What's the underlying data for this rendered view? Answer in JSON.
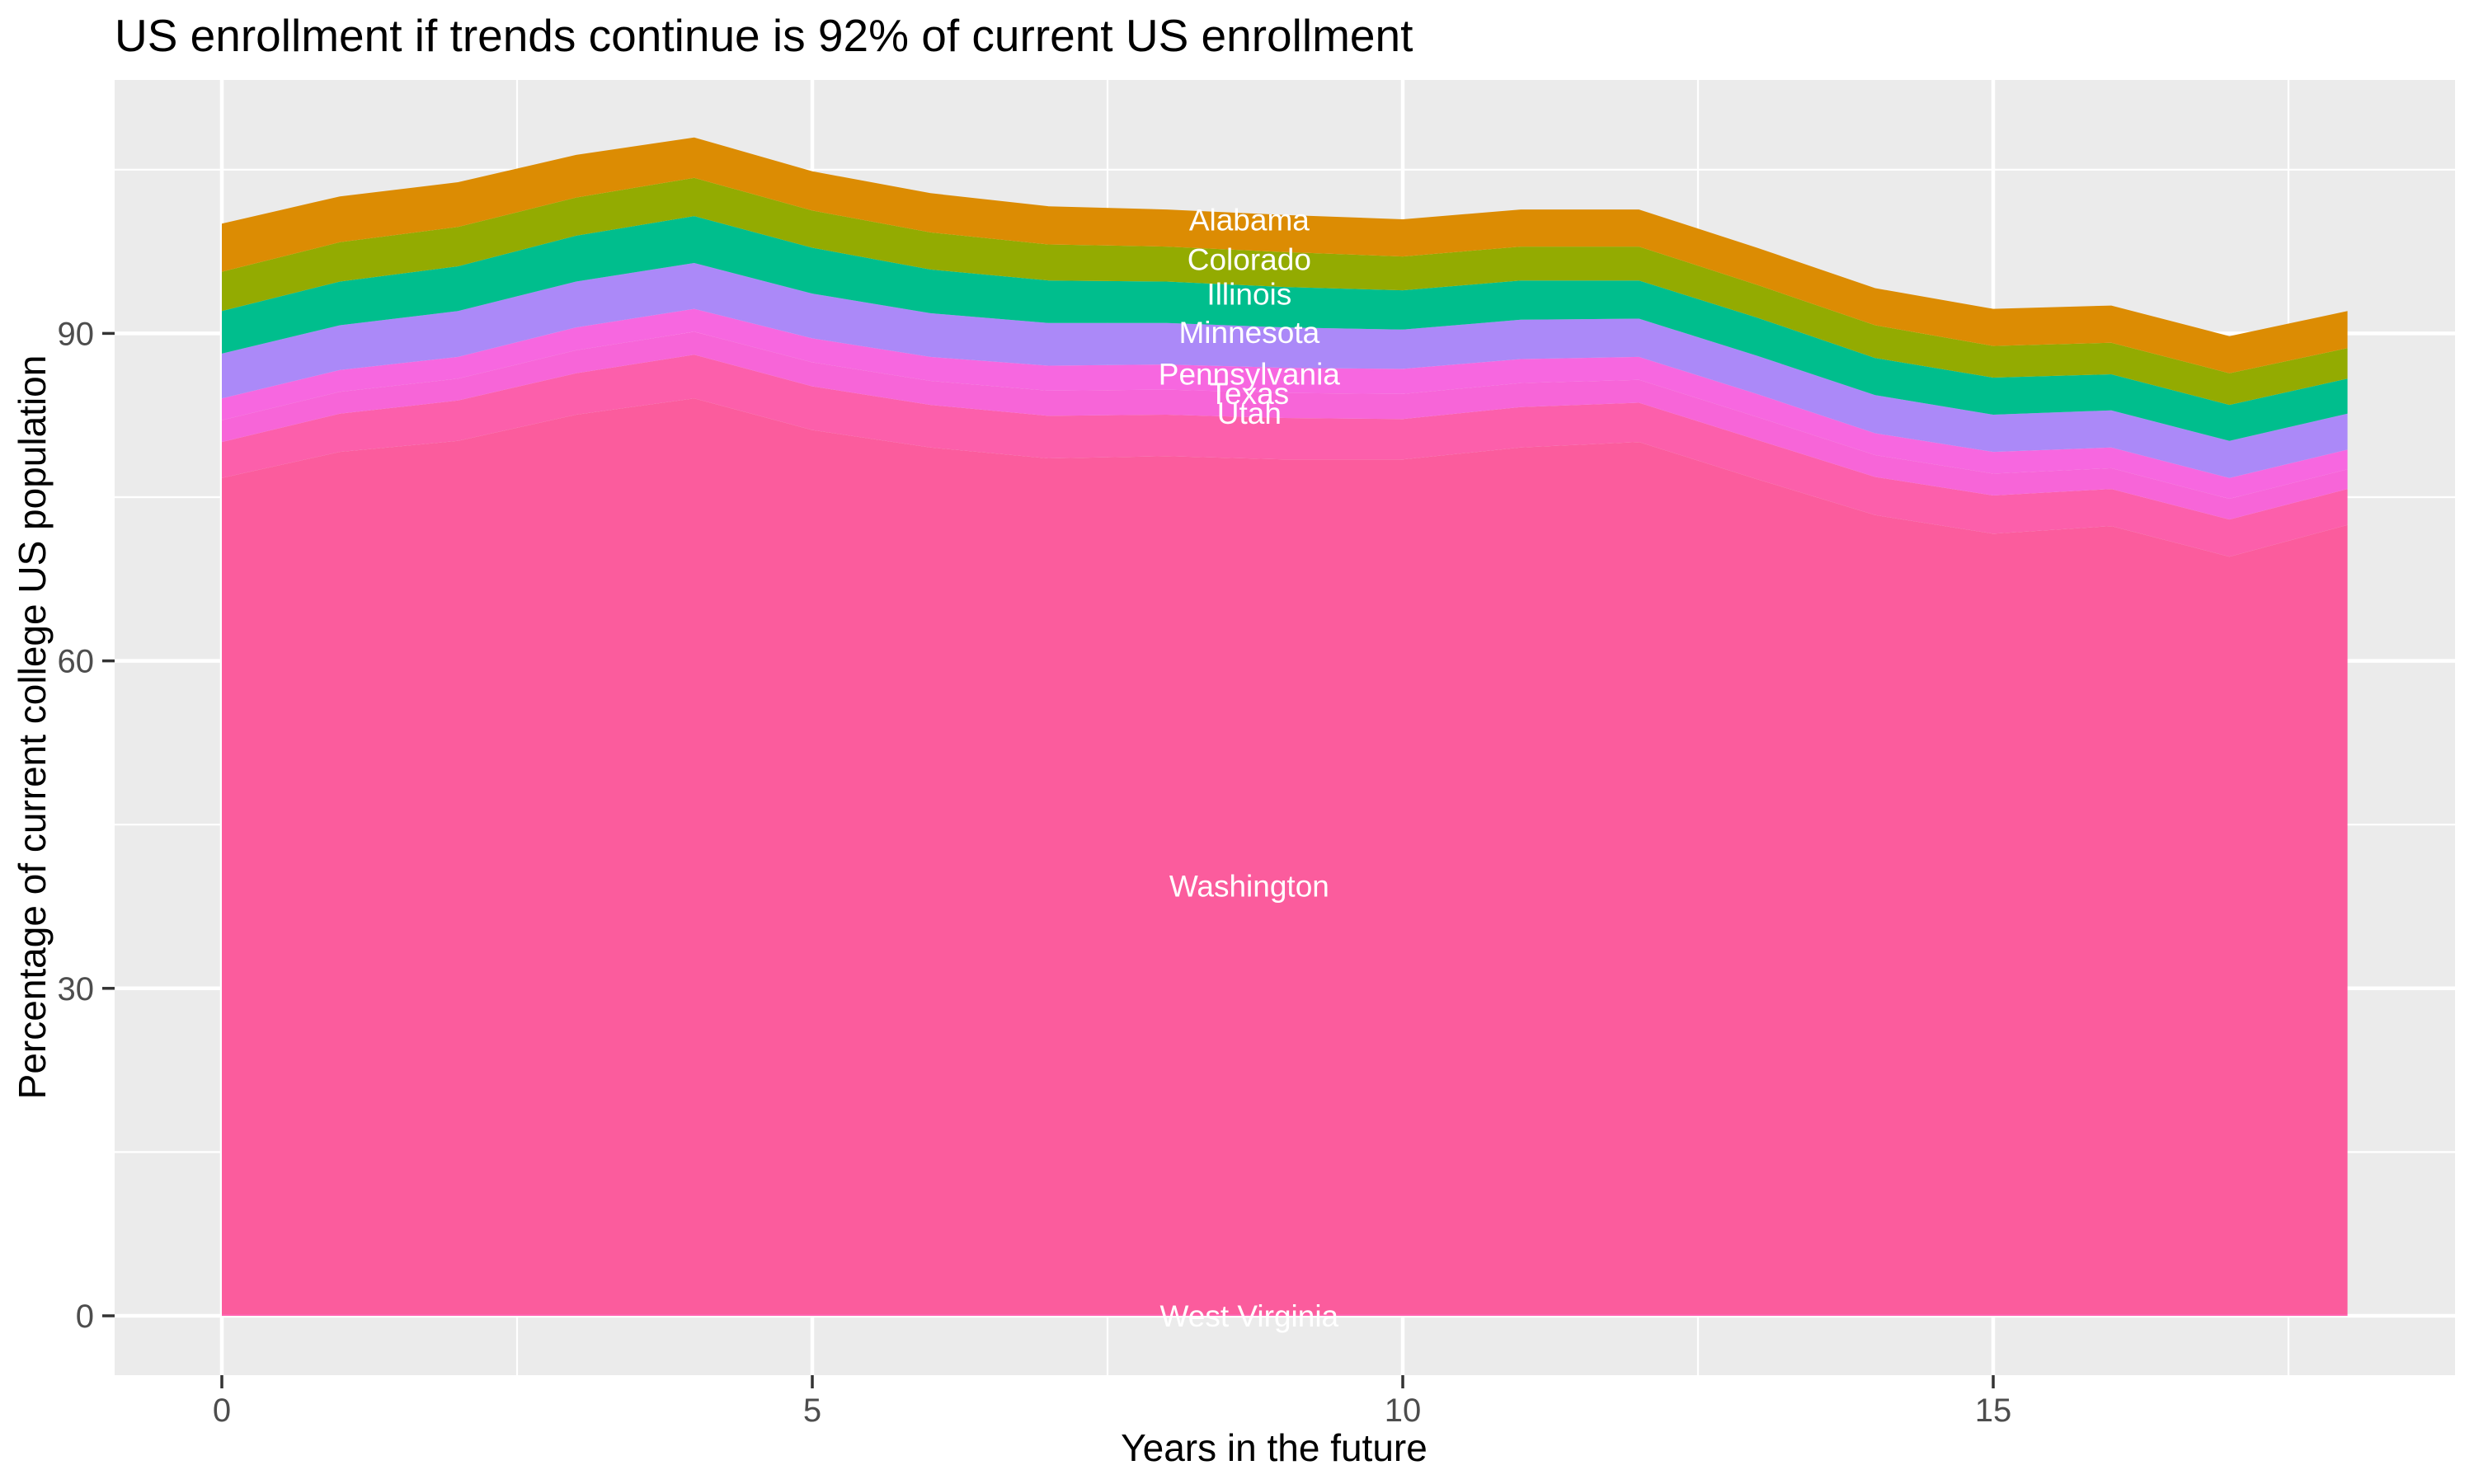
{
  "chart": {
    "panel_color": "#EBEBEB",
    "grid_color": "#FFFFFF",
    "tick_mark_color": "#333333",
    "tick_label_color": "#4D4D4D",
    "title_color": "#000000",
    "area_label_color": "#FFFFFF"
  },
  "chart_data": {
    "type": "area",
    "stacked": true,
    "title": "US enrollment if trends continue is 92% of current US enrollment",
    "xlabel": "Years in the future",
    "ylabel": "Percentage of current college US population",
    "x": [
      0,
      1,
      2,
      3,
      4,
      5,
      6,
      7,
      8,
      9,
      10,
      11,
      12,
      13,
      14,
      15,
      16,
      17,
      18
    ],
    "xlim": [
      -0.9,
      18.9
    ],
    "ylim": [
      -5.4,
      113.0
    ],
    "x_ticks": [
      0,
      5,
      10,
      15
    ],
    "y_ticks": [
      0,
      30,
      60,
      90
    ],
    "x_minor_ticks": [
      2.5,
      7.5,
      12.5,
      17.5
    ],
    "y_minor_ticks": [
      15,
      45,
      75,
      105
    ],
    "grid": true,
    "legend_position": "none",
    "series": [
      {
        "name": "West Virginia",
        "color": "#FF63AE",
        "values": [
          0.15,
          0.15,
          0.15,
          0.15,
          0.15,
          0.15,
          0.15,
          0.15,
          0.15,
          0.15,
          0.15,
          0.15,
          0.15,
          0.15,
          0.15,
          0.15,
          0.15,
          0.15,
          0.15
        ]
      },
      {
        "name": "Washington",
        "color": "#FB5C9D",
        "values": [
          76.6,
          79.0,
          80.0,
          82.4,
          83.9,
          81.0,
          79.4,
          78.4,
          78.6,
          78.3,
          78.3,
          79.4,
          79.9,
          76.5,
          73.2,
          71.5,
          72.2,
          69.4,
          72.3
        ]
      },
      {
        "name": "Utah",
        "color": "#FC5FAB",
        "values": [
          3.3,
          3.5,
          3.7,
          3.8,
          4.0,
          4.0,
          3.9,
          3.9,
          3.8,
          3.8,
          3.7,
          3.7,
          3.6,
          3.6,
          3.5,
          3.5,
          3.4,
          3.4,
          3.3
        ]
      },
      {
        "name": "Texas",
        "color": "#F765D8",
        "values": [
          2.0,
          2.0,
          2.0,
          2.1,
          2.1,
          2.2,
          2.2,
          2.3,
          2.3,
          2.3,
          2.3,
          2.2,
          2.1,
          2.1,
          2.0,
          2.0,
          1.9,
          1.9,
          1.8
        ]
      },
      {
        "name": "Pennsylvania",
        "color": "#F767E0",
        "values": [
          2.0,
          2.0,
          2.0,
          2.1,
          2.1,
          2.2,
          2.2,
          2.3,
          2.3,
          2.3,
          2.3,
          2.2,
          2.1,
          2.1,
          2.0,
          2.0,
          1.9,
          1.9,
          1.8
        ]
      },
      {
        "name": "Minnesota",
        "color": "#AB89F8",
        "values": [
          4.1,
          4.1,
          4.2,
          4.2,
          4.2,
          4.1,
          4.0,
          3.9,
          3.8,
          3.7,
          3.6,
          3.6,
          3.5,
          3.5,
          3.5,
          3.4,
          3.4,
          3.4,
          3.3
        ]
      },
      {
        "name": "Illinois",
        "color": "#00BE8D",
        "values": [
          3.9,
          4.0,
          4.1,
          4.2,
          4.3,
          4.2,
          4.0,
          3.9,
          3.8,
          3.7,
          3.6,
          3.6,
          3.5,
          3.5,
          3.4,
          3.4,
          3.3,
          3.3,
          3.2
        ]
      },
      {
        "name": "Colorado",
        "color": "#93AB01",
        "values": [
          3.6,
          3.6,
          3.6,
          3.5,
          3.5,
          3.4,
          3.4,
          3.3,
          3.2,
          3.2,
          3.1,
          3.1,
          3.1,
          3.0,
          3.0,
          2.9,
          2.9,
          2.9,
          2.8
        ]
      },
      {
        "name": "Alabama",
        "color": "#DC8C03",
        "values": [
          4.4,
          4.2,
          4.1,
          3.9,
          3.7,
          3.6,
          3.6,
          3.5,
          3.4,
          3.4,
          3.4,
          3.4,
          3.4,
          3.4,
          3.4,
          3.4,
          3.4,
          3.4,
          3.4
        ]
      }
    ],
    "annotations": [
      {
        "text": "Alabama",
        "x": 8.7,
        "y": 100.4
      },
      {
        "text": "Colorado",
        "x": 8.7,
        "y": 96.8
      },
      {
        "text": "Illinois",
        "x": 8.7,
        "y": 93.6
      },
      {
        "text": "Minnesota",
        "x": 8.7,
        "y": 90.1
      },
      {
        "text": "Pennsylvania",
        "x": 8.7,
        "y": 86.3
      },
      {
        "text": "Texas",
        "x": 8.7,
        "y": 84.5
      },
      {
        "text": "Utah",
        "x": 8.7,
        "y": 82.7
      },
      {
        "text": "Washington",
        "x": 8.7,
        "y": 39.4
      },
      {
        "text": "West Virginia",
        "x": 8.7,
        "y": 0.0
      }
    ]
  }
}
